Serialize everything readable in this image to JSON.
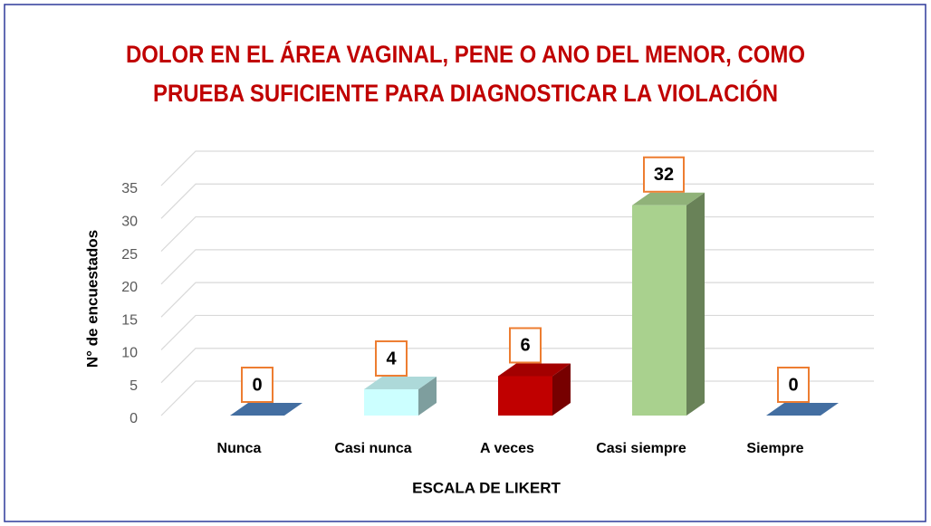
{
  "chart_data": {
    "type": "bar3d",
    "title": [
      "DOLOR EN EL ÁREA VAGINAL, PENE O ANO DEL MENOR, COMO",
      "PRUEBA SUFICIENTE PARA DIAGNOSTICAR LA VIOLACIÓN"
    ],
    "x_label": "ESCALA DE LIKERT",
    "y_label": "N° de encuestados",
    "categories": [
      "Nunca",
      "Casi nunca",
      "A veces",
      "Casi siempre",
      "Siempre"
    ],
    "values": [
      0,
      4,
      6,
      32,
      0
    ],
    "colors": [
      "#4f81bd",
      "#ccffff",
      "#c00000",
      "#a9d18e",
      "#4f81bd"
    ],
    "ylim": [
      0,
      35
    ],
    "yticks": [
      0,
      5,
      10,
      15,
      20,
      25,
      30,
      35
    ],
    "grid": true
  }
}
